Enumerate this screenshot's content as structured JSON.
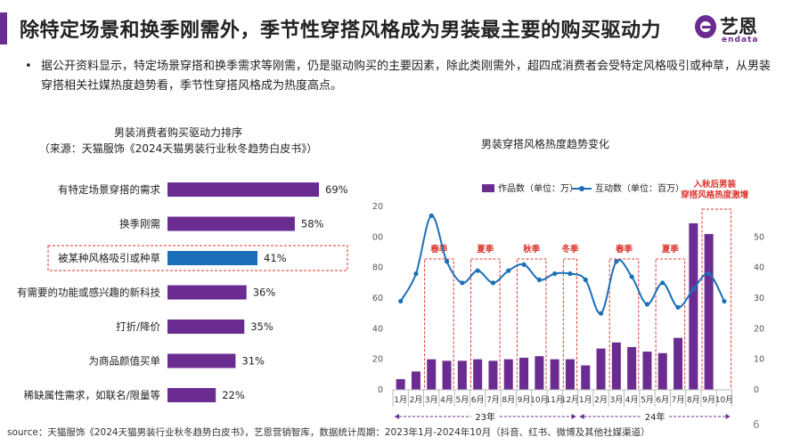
{
  "header": {
    "title": "除特定场景和换季刚需外，季节性穿搭风格成为男装最主要的购买驱动力",
    "logo_text": "艺恩",
    "logo_sub": "endata"
  },
  "bullet": {
    "dot": "•",
    "text": "据公开资料显示，特定场景穿搭和换季需求等刚需，仍是驱动购买的主要因素，除此类刚需外，超四成消费者会受特定风格吸引或种草，从男装穿搭相关社媒热度趋势看，季节性穿搭风格成为热度高点。"
  },
  "colors": {
    "purple": "#6a2c91",
    "blue": "#1b6fb8",
    "red": "#d9342b"
  },
  "chart_data": [
    {
      "type": "bar",
      "orientation": "horizontal",
      "title": "男装消费者购买驱动力排序",
      "subtitle": "（来源：天猫服饰《2024天猫男装行业秋冬趋势白皮书》）",
      "categories": [
        "有特定场景穿搭的需求",
        "换季刚需",
        "被某种风格吸引或种草",
        "有需要的功能或感兴趣的新科技",
        "打折/降价",
        "为商品颜值买单",
        "稀缺属性需求，如联名/限量等"
      ],
      "values": [
        69,
        58,
        41,
        36,
        35,
        31,
        22
      ],
      "value_labels": [
        "69%",
        "58%",
        "41%",
        "36%",
        "35%",
        "31%",
        "22%"
      ],
      "highlight_index": 2
    },
    {
      "type": "bar+line",
      "title": "男装穿搭风格热度趋势变化",
      "categories": [
        "1月",
        "2月",
        "3月",
        "4月",
        "5月",
        "6月",
        "7月",
        "8月",
        "9月",
        "10月",
        "11月",
        "12月",
        "1月",
        "2月",
        "3月",
        "4月",
        "5月",
        "6月",
        "7月",
        "8月",
        "9月",
        "10月"
      ],
      "year_groups": [
        {
          "label": "23年",
          "start": 0,
          "end": 11
        },
        {
          "label": "24年",
          "start": 12,
          "end": 21
        }
      ],
      "series": [
        {
          "name": "作品数（单位：万）",
          "type": "bar",
          "axis": "left",
          "values": [
            7,
            12,
            20,
            19,
            19,
            20,
            19,
            20,
            21,
            22,
            20,
            20,
            16,
            27,
            31,
            28,
            25,
            24,
            34,
            109,
            102,
            0
          ]
        },
        {
          "name": "互动数（单位：百万）",
          "type": "line",
          "axis": "right",
          "values": [
            29,
            38,
            57,
            42,
            35,
            39,
            35,
            39,
            41,
            36,
            38,
            38,
            36,
            25,
            42,
            37,
            28,
            35,
            27,
            33,
            38,
            29
          ]
        }
      ],
      "y_left": {
        "range": [
          0,
          120
        ],
        "ticks": [
          "0",
          "20",
          "40",
          "60",
          "80",
          "100",
          "120"
        ]
      },
      "y_right": {
        "range": [
          0,
          60
        ],
        "ticks": [
          "0",
          "10",
          "20",
          "30",
          "40",
          "50"
        ]
      },
      "annotations": [
        {
          "label": "春季",
          "start": 2,
          "end": 3
        },
        {
          "label": "夏季",
          "start": 5,
          "end": 6
        },
        {
          "label": "秋季",
          "start": 8,
          "end": 9
        },
        {
          "label": "冬季",
          "start": 11,
          "end": 11
        },
        {
          "label": "春季",
          "start": 14,
          "end": 15
        },
        {
          "label": "夏季",
          "start": 17,
          "end": 18
        },
        {
          "label": "入秋后男装\n穿搭风格热度激增",
          "start": 20,
          "end": 21
        }
      ]
    }
  ],
  "footer": {
    "source": "source：天猫服饰《2024天猫男装行业秋冬趋势白皮书》，艺恩营销智库，数据统计周期：2023年1月-2024年10月（抖音、红书、微博及其他社媒渠道）",
    "page": "6"
  }
}
